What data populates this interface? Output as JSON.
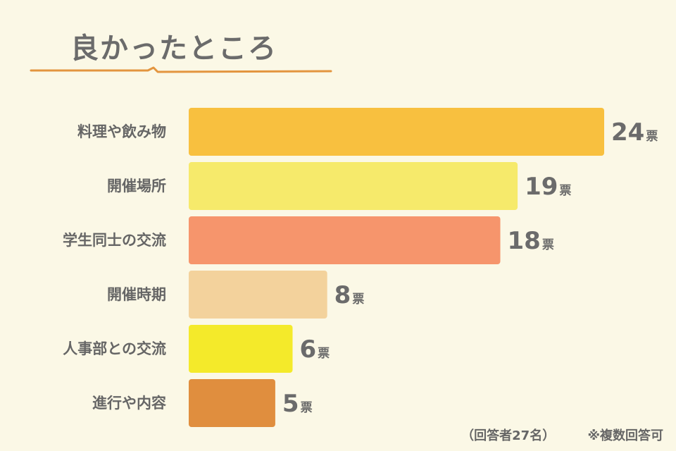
{
  "title": "良かったところ",
  "footnote": {
    "respondents": "（回答者27名）",
    "note": "※複数回答可"
  },
  "chart_data": {
    "type": "bar",
    "orientation": "horizontal",
    "categories": [
      "料理や飲み物",
      "開催場所",
      "学生同士の交流",
      "開催時期",
      "人事部との交流",
      "進行や内容"
    ],
    "values": [
      24,
      19,
      18,
      8,
      6,
      5
    ],
    "unit": "票",
    "colors": [
      "#f8c03f",
      "#f6ea6b",
      "#f6956c",
      "#f3d29c",
      "#f4ea2a",
      "#e08e3e"
    ],
    "xlim": [
      0,
      24
    ]
  }
}
